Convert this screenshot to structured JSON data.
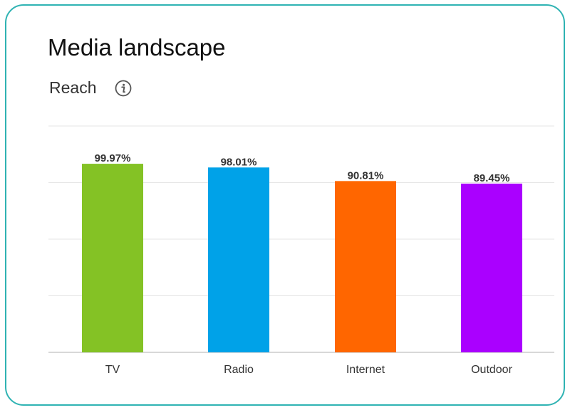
{
  "card": {
    "title": "Media landscape",
    "subtitle": "Reach",
    "info_icon": "info-icon"
  },
  "colors": {
    "border": "#2fb3b3",
    "grid": "#e6e6e6",
    "axis": "#cccccc",
    "label": "#333333"
  },
  "chart_data": {
    "type": "bar",
    "categories": [
      "TV",
      "Radio",
      "Internet",
      "Outdoor"
    ],
    "values": [
      99.97,
      98.01,
      90.81,
      89.45
    ],
    "value_labels": [
      "99.97%",
      "98.01%",
      "90.81%",
      "89.45%"
    ],
    "colors": [
      "#84c225",
      "#00a2e8",
      "#ff6600",
      "#aa00ff"
    ],
    "title": "",
    "ylabel": "",
    "xlabel": "",
    "ylim": [
      0,
      100
    ],
    "grid": true
  }
}
